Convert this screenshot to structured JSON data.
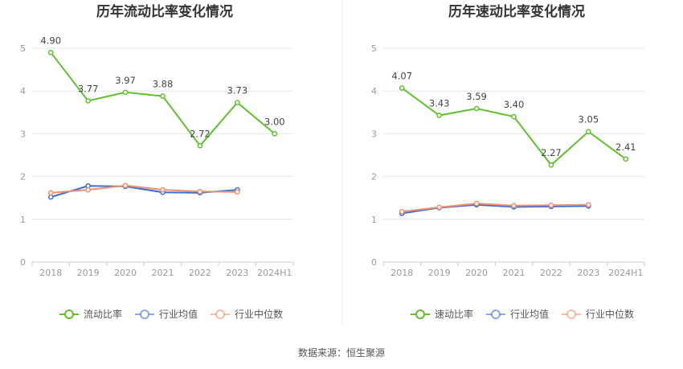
{
  "source_text": "数据来源：恒生聚源",
  "colors": {
    "main": "#5ec22b",
    "avg": "#3d6fd1",
    "median": "#ef8f6f",
    "grid": "#e6e6e6",
    "axis": "#cccccc",
    "divider": "#eeeeee"
  },
  "chart_data": [
    {
      "type": "line",
      "title": "历年流动比率变化情况",
      "categories": [
        "2018",
        "2019",
        "2020",
        "2021",
        "2022",
        "2023",
        "2024H1"
      ],
      "y_ticks": [
        "0",
        "1",
        "2",
        "3",
        "4",
        "5"
      ],
      "ylim": [
        0,
        5
      ],
      "grid": true,
      "legend_position": "bottom",
      "series": [
        {
          "name": "流动比率",
          "color_key": "main",
          "values": [
            4.9,
            3.77,
            3.97,
            3.88,
            2.72,
            3.73,
            3.0
          ],
          "labels": [
            "4.90",
            "3.77",
            "3.97",
            "3.88",
            "2.72",
            "3.73",
            "3.00"
          ]
        },
        {
          "name": "行业均值",
          "color_key": "avg",
          "values": [
            1.52,
            1.78,
            1.77,
            1.63,
            1.62,
            1.69,
            null
          ]
        },
        {
          "name": "行业中位数",
          "color_key": "median",
          "values": [
            1.62,
            1.69,
            1.79,
            1.69,
            1.65,
            1.64,
            null
          ]
        }
      ]
    },
    {
      "type": "line",
      "title": "历年速动比率变化情况",
      "categories": [
        "2018",
        "2019",
        "2020",
        "2021",
        "2022",
        "2023",
        "2024H1"
      ],
      "y_ticks": [
        "0",
        "1",
        "2",
        "3",
        "4",
        "5"
      ],
      "ylim": [
        0,
        5
      ],
      "grid": true,
      "legend_position": "bottom",
      "series": [
        {
          "name": "速动比率",
          "color_key": "main",
          "values": [
            4.07,
            3.43,
            3.59,
            3.4,
            2.27,
            3.05,
            2.41
          ],
          "labels": [
            "4.07",
            "3.43",
            "3.59",
            "3.40",
            "2.27",
            "3.05",
            "2.41"
          ]
        },
        {
          "name": "行业均值",
          "color_key": "avg",
          "values": [
            1.14,
            1.27,
            1.34,
            1.29,
            1.3,
            1.31,
            null
          ]
        },
        {
          "name": "行业中位数",
          "color_key": "median",
          "values": [
            1.18,
            1.28,
            1.37,
            1.32,
            1.33,
            1.34,
            null
          ]
        }
      ]
    }
  ]
}
